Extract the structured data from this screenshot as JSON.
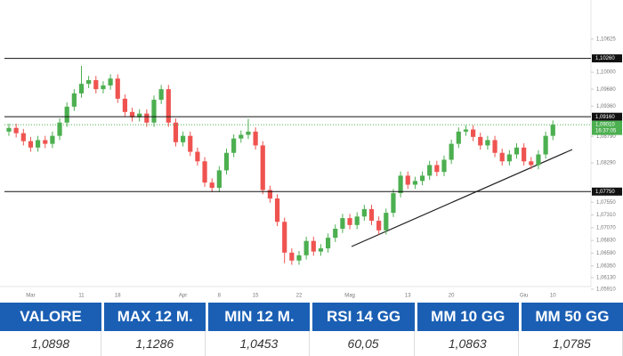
{
  "chart_data": {
    "type": "candlestick",
    "categories": [
      null,
      null,
      null,
      "Mar",
      null,
      null,
      null,
      null,
      null,
      null,
      "11",
      null,
      null,
      null,
      null,
      "18",
      null,
      null,
      null,
      null,
      null,
      null,
      null,
      null,
      "Apr",
      null,
      null,
      null,
      null,
      "8",
      null,
      null,
      null,
      null,
      "15",
      null,
      null,
      null,
      null,
      null,
      "22",
      null,
      null,
      null,
      null,
      null,
      null,
      "Mag",
      null,
      null,
      null,
      null,
      null,
      null,
      null,
      "13",
      null,
      null,
      null,
      null,
      null,
      "20",
      null,
      null,
      null,
      null,
      null,
      null,
      null,
      null,
      null,
      "Giu",
      null,
      null,
      null,
      "10"
    ],
    "open": [
      1.0888,
      1.0895,
      1.0885,
      1.087,
      1.0858,
      1.0872,
      1.0865,
      1.088,
      1.0905,
      1.0935,
      1.096,
      1.0978,
      1.0985,
      1.0968,
      1.0975,
      1.0988,
      1.095,
      1.0925,
      1.0915,
      1.0922,
      1.0905,
      1.0948,
      1.0968,
      1.0905,
      1.0868,
      1.088,
      1.085,
      1.0832,
      1.0792,
      1.0782,
      1.0815,
      1.0848,
      1.0875,
      1.0882,
      1.0888,
      1.0862,
      1.0778,
      1.0762,
      1.0718,
      1.066,
      1.0645,
      1.0655,
      1.0682,
      1.0662,
      1.0668,
      1.0688,
      1.0705,
      1.0725,
      1.0712,
      1.0728,
      1.0742,
      1.072,
      1.0702,
      1.0735,
      1.0772,
      1.0805,
      1.0788,
      1.0795,
      1.0805,
      1.0825,
      1.0812,
      1.0835,
      1.0865,
      1.0888,
      1.0892,
      1.0878,
      1.0862,
      1.0872,
      1.0848,
      1.0832,
      1.0845,
      1.0858,
      1.0832,
      1.0825,
      1.0845,
      1.088
    ],
    "high": [
      1.0903,
      1.0903,
      1.0893,
      1.0878,
      1.088,
      1.088,
      1.0888,
      1.0913,
      1.0943,
      1.0968,
      1.1012,
      1.0993,
      1.0993,
      1.0983,
      1.0996,
      1.0996,
      1.0958,
      1.0933,
      1.093,
      1.093,
      1.0956,
      1.0976,
      1.0976,
      1.0913,
      1.0888,
      1.0888,
      1.0858,
      1.084,
      1.08,
      1.0823,
      1.0856,
      1.0883,
      1.089,
      1.0912,
      1.0896,
      1.087,
      1.0786,
      1.077,
      1.0726,
      1.0668,
      1.0663,
      1.069,
      1.069,
      1.0676,
      1.0696,
      1.0713,
      1.0733,
      1.0733,
      1.0736,
      1.075,
      1.075,
      1.0728,
      1.0743,
      1.078,
      1.0813,
      1.0813,
      1.0803,
      1.0813,
      1.0833,
      1.0833,
      1.0843,
      1.0873,
      1.0896,
      1.09,
      1.09,
      1.0886,
      1.088,
      1.088,
      1.0856,
      1.0853,
      1.0866,
      1.0866,
      1.084,
      1.0853,
      1.0888,
      1.0909
    ],
    "low": [
      1.088,
      1.0877,
      1.0862,
      1.085,
      1.085,
      1.0857,
      1.0857,
      1.0872,
      1.0897,
      1.0927,
      1.0952,
      1.097,
      1.096,
      1.096,
      1.0967,
      1.0942,
      1.0917,
      1.0907,
      1.0907,
      1.0897,
      1.0897,
      1.094,
      1.0897,
      1.086,
      1.086,
      1.0842,
      1.0824,
      1.0784,
      1.0774,
      1.0774,
      1.0807,
      1.084,
      1.0867,
      1.0874,
      1.0854,
      1.077,
      1.0754,
      1.071,
      1.064,
      1.0637,
      1.0637,
      1.0647,
      1.0654,
      1.0654,
      1.066,
      1.068,
      1.0697,
      1.0704,
      1.0704,
      1.072,
      1.0712,
      1.0694,
      1.0694,
      1.0727,
      1.0764,
      1.078,
      1.078,
      1.0787,
      1.0797,
      1.0804,
      1.0804,
      1.0827,
      1.0857,
      1.088,
      1.087,
      1.0854,
      1.0854,
      1.084,
      1.0824,
      1.0824,
      1.0837,
      1.0824,
      1.0817,
      1.0817,
      1.0837,
      1.0872
    ],
    "close": [
      1.0895,
      1.0885,
      1.087,
      1.0858,
      1.0872,
      1.0865,
      1.088,
      1.0905,
      1.0935,
      1.096,
      1.0978,
      1.0985,
      1.0968,
      1.0975,
      1.0988,
      1.095,
      1.0925,
      1.0915,
      1.0922,
      1.0905,
      1.0948,
      1.0968,
      1.0905,
      1.0868,
      1.088,
      1.085,
      1.0832,
      1.0792,
      1.0782,
      1.0815,
      1.0848,
      1.0875,
      1.0882,
      1.0888,
      1.0862,
      1.0778,
      1.0762,
      1.0718,
      1.066,
      1.0645,
      1.0655,
      1.0682,
      1.0662,
      1.0668,
      1.0688,
      1.0705,
      1.0725,
      1.0712,
      1.0728,
      1.0742,
      1.072,
      1.0702,
      1.0735,
      1.0772,
      1.0805,
      1.0788,
      1.0795,
      1.0805,
      1.0825,
      1.0812,
      1.0835,
      1.0865,
      1.0888,
      1.0892,
      1.0878,
      1.0862,
      1.0872,
      1.0848,
      1.0832,
      1.0845,
      1.0858,
      1.0832,
      1.0825,
      1.0845,
      1.088,
      1.0901
    ],
    "up_color": "#4caf50",
    "down_color": "#ef5350",
    "ylim": [
      1.0596,
      1.1136
    ],
    "yticks": [
      {
        "value": 1.10625,
        "label": "1,10625"
      },
      {
        "value": 1.1,
        "label": "1,10000"
      },
      {
        "value": 1.0968,
        "label": "1,09680"
      },
      {
        "value": 1.0936,
        "label": "1,09360"
      },
      {
        "value": 1.0879,
        "label": "1,08790"
      },
      {
        "value": 1.0829,
        "label": "1,08290"
      },
      {
        "value": 1.0755,
        "label": "1,07550"
      },
      {
        "value": 1.0731,
        "label": "1,07310"
      },
      {
        "value": 1.0707,
        "label": "1,07070"
      },
      {
        "value": 1.0683,
        "label": "1,06830"
      },
      {
        "value": 1.0659,
        "label": "1,06590"
      },
      {
        "value": 1.0635,
        "label": "1,06350"
      },
      {
        "value": 1.0613,
        "label": "1,06130"
      },
      {
        "value": 1.0591,
        "label": "1,05910"
      }
    ],
    "levels": [
      {
        "value": 1.1026,
        "label": "1,10260"
      },
      {
        "value": 1.0916,
        "label": "1,09160"
      },
      {
        "value": 1.0775,
        "label": "1,07750"
      }
    ],
    "last_price": {
      "value": 1.0901,
      "label": "1,09010",
      "time": "16:37:05"
    }
  },
  "table": {
    "headers": [
      "VALORE",
      "MAX 12 M.",
      "MIN 12 M.",
      "RSI 14 GG",
      "MM 10 GG",
      "MM 50 GG"
    ],
    "values": [
      "1,0898",
      "1,1286",
      "1,0453",
      "60,05",
      "1,0863",
      "1,0785"
    ]
  }
}
